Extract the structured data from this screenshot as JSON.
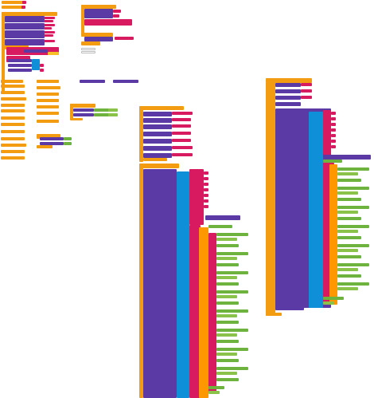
{
  "window": {
    "title": ""
  },
  "workspace": {
    "name": "blocks-workspace",
    "colors": {
      "event": "#f39c12",
      "text": "#d81b60",
      "component": "#5b3aa6",
      "logic": "#0f8fd8",
      "math": "#6fb33f"
    }
  }
}
